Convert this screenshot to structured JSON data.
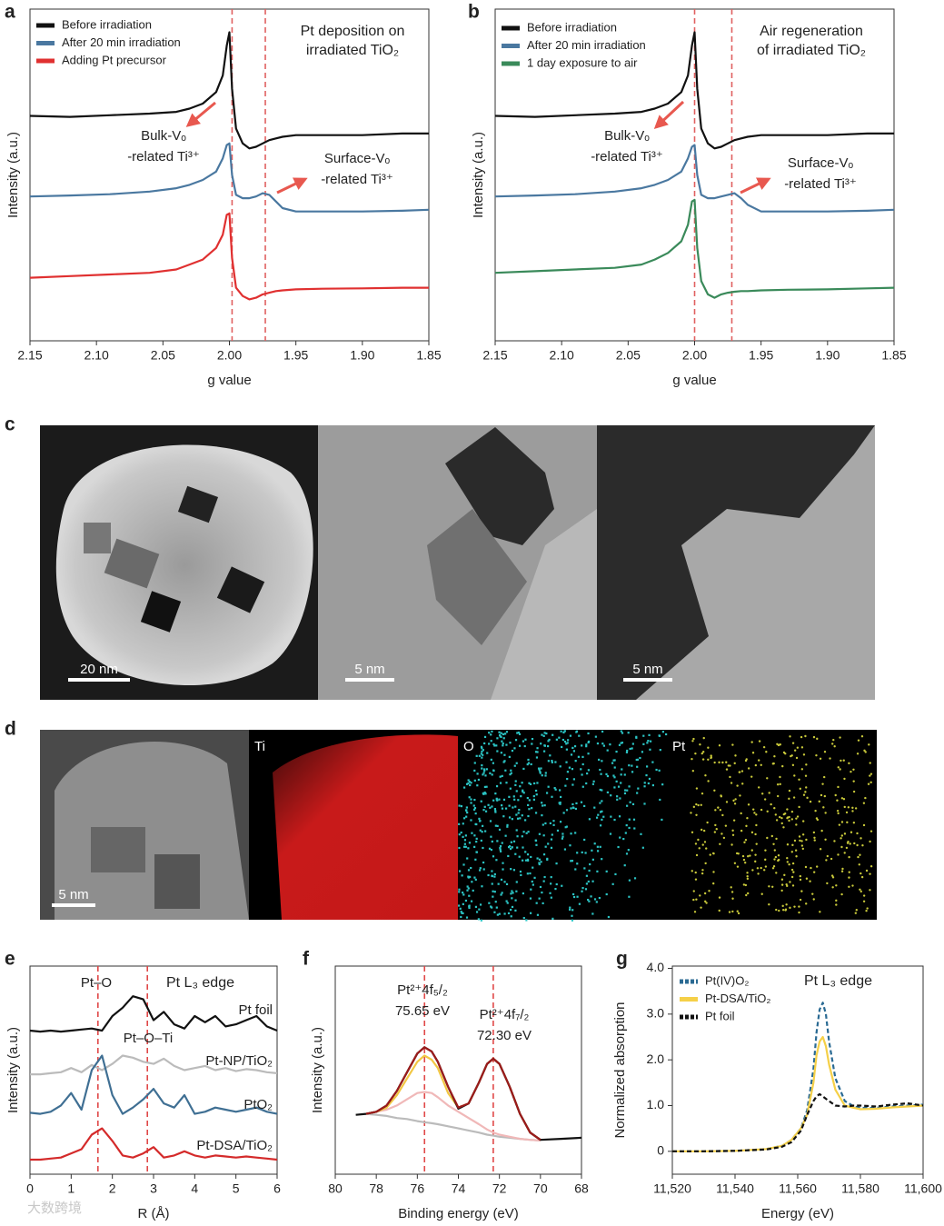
{
  "chart_data": [
    {
      "panel": "a",
      "type": "line",
      "title": [
        "Pt deposition on",
        "irradiated TiO₂"
      ],
      "xlabel": "g value",
      "ylabel": "Intensity (a.u.)",
      "x": [
        2.15,
        2.12,
        2.09,
        2.06,
        2.04,
        2.03,
        2.02,
        2.01,
        2.005,
        2.002,
        2.0,
        1.998,
        1.995,
        1.99,
        1.985,
        1.98,
        1.975,
        1.97,
        1.965,
        1.96,
        1.95,
        1.93,
        1.9,
        1.87,
        1.85
      ],
      "xlim": [
        2.15,
        1.85
      ],
      "xticks": [
        {
          "value": 2.15,
          "label": "2.15"
        },
        {
          "value": 2.1,
          "label": "2.10"
        },
        {
          "value": 2.05,
          "label": "2.05"
        },
        {
          "value": 2.0,
          "label": "2.00"
        },
        {
          "value": 1.95,
          "label": "1.95"
        },
        {
          "value": 1.9,
          "label": "1.90"
        },
        {
          "value": 1.85,
          "label": "1.85"
        }
      ],
      "ylim": [
        0,
        10
      ],
      "legend": true,
      "vlines": [
        1.998,
        1.973
      ],
      "vline_color": "#e06060",
      "series": [
        {
          "name": "Before irradiation",
          "color": "#111111",
          "values": [
            6.78,
            6.75,
            6.8,
            6.85,
            6.9,
            7.0,
            7.15,
            7.5,
            8.0,
            8.9,
            9.3,
            7.6,
            6.4,
            5.95,
            5.8,
            5.85,
            5.95,
            6.05,
            6.1,
            6.15,
            6.2,
            6.2,
            6.2,
            6.25,
            6.25
          ]
        },
        {
          "name": "After 20 min irradiation",
          "color": "#4a78a0",
          "values": [
            4.35,
            4.38,
            4.42,
            4.5,
            4.6,
            4.7,
            4.85,
            5.1,
            5.5,
            5.9,
            5.95,
            5.0,
            4.4,
            4.3,
            4.3,
            4.35,
            4.45,
            4.4,
            4.2,
            4.0,
            3.9,
            3.9,
            3.9,
            3.92,
            3.95
          ]
        },
        {
          "name": "Adding Pt precursor",
          "color": "#e03030",
          "values": [
            1.9,
            1.95,
            2.0,
            2.05,
            2.15,
            2.3,
            2.45,
            2.8,
            3.2,
            3.8,
            3.84,
            2.5,
            1.6,
            1.35,
            1.25,
            1.3,
            1.4,
            1.45,
            1.5,
            1.52,
            1.55,
            1.57,
            1.58,
            1.6,
            1.6
          ]
        }
      ],
      "annotations": [
        {
          "text": [
            "Bulk-Vₒ",
            "-related Ti³⁺"
          ]
        },
        {
          "text": [
            "Surface-Vₒ",
            "-related Ti³⁺"
          ]
        }
      ]
    },
    {
      "panel": "b",
      "type": "line",
      "title": [
        "Air regeneration",
        "of irradiated TiO₂"
      ],
      "xlabel": "g value",
      "ylabel": "Intensity (a.u.)",
      "x": [
        2.15,
        2.12,
        2.09,
        2.06,
        2.04,
        2.03,
        2.02,
        2.01,
        2.005,
        2.002,
        2.0,
        1.998,
        1.995,
        1.99,
        1.985,
        1.98,
        1.975,
        1.97,
        1.965,
        1.96,
        1.95,
        1.93,
        1.9,
        1.87,
        1.85
      ],
      "xlim": [
        2.15,
        1.85
      ],
      "xticks": [
        {
          "value": 2.15,
          "label": "2.15"
        },
        {
          "value": 2.1,
          "label": "2.10"
        },
        {
          "value": 2.05,
          "label": "2.05"
        },
        {
          "value": 2.0,
          "label": "2.00"
        },
        {
          "value": 1.95,
          "label": "1.95"
        },
        {
          "value": 1.9,
          "label": "1.90"
        },
        {
          "value": 1.85,
          "label": "1.85"
        }
      ],
      "ylim": [
        0,
        10
      ],
      "legend": true,
      "vlines": [
        2.0,
        1.972
      ],
      "vline_color": "#e06060",
      "series": [
        {
          "name": "Before irradiation",
          "color": "#111111",
          "values": [
            6.78,
            6.75,
            6.8,
            6.85,
            6.9,
            7.0,
            7.15,
            7.5,
            8.0,
            8.9,
            9.3,
            7.6,
            6.4,
            5.95,
            5.8,
            5.85,
            5.95,
            6.05,
            6.1,
            6.15,
            6.2,
            6.2,
            6.2,
            6.25,
            6.25
          ]
        },
        {
          "name": "After 20 min irradiation",
          "color": "#4a78a0",
          "values": [
            4.35,
            4.38,
            4.42,
            4.5,
            4.6,
            4.7,
            4.85,
            5.1,
            5.5,
            5.85,
            5.9,
            5.0,
            4.4,
            4.3,
            4.3,
            4.35,
            4.4,
            4.45,
            4.3,
            4.1,
            3.9,
            3.9,
            3.9,
            3.92,
            3.95
          ]
        },
        {
          "name": "1 day exposure to air",
          "color": "#3a8a5a",
          "values": [
            2.05,
            2.1,
            2.15,
            2.2,
            2.3,
            2.45,
            2.65,
            3.0,
            3.5,
            4.2,
            4.25,
            2.8,
            1.8,
            1.4,
            1.3,
            1.4,
            1.45,
            1.48,
            1.5,
            1.5,
            1.52,
            1.54,
            1.55,
            1.58,
            1.6
          ]
        }
      ],
      "annotations": [
        {
          "text": [
            "Bulk-Vₒ",
            "-related Ti³⁺"
          ]
        },
        {
          "text": [
            "Surface-Vₒ",
            "-related Ti³⁺"
          ]
        }
      ]
    },
    {
      "panel": "e",
      "type": "line",
      "title": [
        "Pt L₃ edge"
      ],
      "xlabel": "R (Å)",
      "ylabel": "Intensity (a.u.)",
      "x": [
        0,
        0.25,
        0.5,
        0.75,
        1,
        1.25,
        1.5,
        1.75,
        2,
        2.25,
        2.5,
        2.75,
        3,
        3.25,
        3.5,
        3.75,
        4,
        4.25,
        4.5,
        4.75,
        5,
        5.25,
        5.5,
        5.75,
        6
      ],
      "xlim": [
        0,
        6
      ],
      "xticks": [
        0,
        1,
        2,
        3,
        4,
        5,
        6
      ],
      "ylim": [
        0,
        10
      ],
      "legend": "direct",
      "vlines": [
        1.65,
        2.85
      ],
      "vline_color": "#e04848",
      "series": [
        {
          "name": "Pt foil",
          "color": "#111111",
          "values": [
            6.9,
            6.85,
            6.9,
            6.85,
            6.9,
            6.95,
            7.0,
            6.9,
            7.6,
            8.0,
            8.55,
            8.4,
            7.4,
            7.8,
            7.2,
            7.0,
            7.6,
            7.3,
            7.6,
            7.1,
            7.2,
            7.4,
            7.6,
            7.1,
            6.9
          ]
        },
        {
          "name": "Pt-NP/TiO₂",
          "color": "#bbbbbb",
          "values": [
            4.8,
            4.8,
            4.85,
            4.9,
            5.1,
            4.9,
            5.25,
            5.0,
            5.3,
            5.7,
            5.6,
            5.4,
            5.3,
            5.55,
            5.2,
            5.0,
            5.1,
            5.2,
            5.0,
            5.1,
            4.95,
            5.05,
            5.0,
            4.9,
            4.85
          ]
        },
        {
          "name": "PtO₂",
          "color": "#3f6f93",
          "values": [
            2.95,
            2.9,
            3.0,
            3.3,
            3.9,
            3.1,
            5.0,
            5.7,
            3.8,
            2.9,
            3.2,
            3.6,
            4.1,
            3.4,
            3.2,
            3.8,
            2.9,
            3.0,
            3.2,
            3.1,
            3.0,
            3.1,
            3.2,
            3.0,
            2.9
          ]
        },
        {
          "name": "Pt-DSA/TiO₂",
          "color": "#d42a2a",
          "values": [
            0.7,
            0.7,
            0.75,
            0.8,
            1.0,
            1.2,
            1.9,
            2.2,
            1.6,
            0.9,
            0.8,
            1.0,
            1.3,
            0.8,
            0.9,
            1.1,
            0.9,
            0.8,
            0.9,
            0.85,
            0.8,
            0.85,
            0.8,
            0.75,
            0.7
          ]
        }
      ],
      "annotations": [
        {
          "text": [
            "Pt–O"
          ]
        },
        {
          "text": [
            "Pt–O–Ti"
          ]
        }
      ]
    },
    {
      "panel": "f",
      "type": "line",
      "xlabel": "Binding energy (eV)",
      "ylabel": "Intensity (a.u.)",
      "x": [
        80,
        79,
        78.5,
        78,
        77.5,
        77,
        76.5,
        76,
        75.65,
        75.3,
        75,
        74.5,
        74,
        73.5,
        73,
        72.6,
        72.3,
        72,
        71.5,
        71,
        70.5,
        70,
        69,
        68
      ],
      "xlim": [
        80,
        68
      ],
      "xticks": [
        80,
        78,
        76,
        74,
        72,
        70,
        68
      ],
      "ylim": [
        0,
        10
      ],
      "vlines": [
        75.65,
        72.3
      ],
      "vline_color": "#e04848",
      "series": [
        {
          "color": "#bbbbbb",
          "values": [
            null,
            null,
            2.9,
            2.85,
            2.8,
            2.7,
            2.65,
            2.55,
            2.5,
            2.45,
            2.4,
            2.3,
            2.2,
            2.1,
            2.0,
            1.9,
            1.85,
            1.8,
            1.75,
            1.7,
            1.65,
            1.62,
            null,
            null
          ]
        },
        {
          "color": "#f0b8b8",
          "values": [
            null,
            null,
            2.9,
            3.0,
            3.1,
            3.3,
            3.6,
            3.9,
            3.95,
            3.9,
            3.7,
            3.3,
            3.0,
            2.7,
            2.4,
            2.15,
            2.0,
            1.9,
            1.8,
            1.7,
            1.65,
            1.62,
            null,
            null
          ]
        },
        {
          "color": "#f2c744",
          "values": [
            null,
            null,
            2.9,
            3.0,
            3.2,
            3.8,
            4.6,
            5.4,
            5.7,
            5.5,
            5.1,
            3.9,
            3.2,
            3.4,
            4.4,
            5.3,
            5.55,
            5.3,
            4.2,
            2.9,
            2.0,
            1.65,
            null,
            null
          ]
        },
        {
          "color": "#111111",
          "values": [
            null,
            2.85,
            2.9,
            3.0,
            3.3,
            4.0,
            4.9,
            5.8,
            6.1,
            5.9,
            5.4,
            4.2,
            3.15,
            3.4,
            4.4,
            5.3,
            5.55,
            5.3,
            4.2,
            2.9,
            2.0,
            1.65,
            1.7,
            1.75
          ]
        },
        {
          "color": "#9b1b1b",
          "values": [
            null,
            null,
            2.9,
            3.0,
            3.3,
            4.0,
            4.9,
            5.8,
            6.1,
            5.9,
            5.4,
            4.2,
            3.2,
            3.4,
            4.4,
            5.3,
            5.55,
            5.3,
            4.2,
            2.9,
            2.0,
            1.65,
            null,
            null
          ]
        }
      ],
      "annotations": [
        {
          "text": [
            "Pt²⁺4f₅/₂",
            "75.65 eV"
          ]
        },
        {
          "text": [
            "Pt²⁺4f₇/₂",
            "72.30 eV"
          ]
        }
      ]
    },
    {
      "panel": "g",
      "type": "line",
      "title": [
        "Pt L₃ edge"
      ],
      "xlabel": "Energy (eV)",
      "ylabel": "Normalized absorption",
      "x": [
        11520,
        11530,
        11540,
        11550,
        11555,
        11558,
        11561,
        11563,
        11565,
        11566,
        11567,
        11568,
        11569,
        11570,
        11572,
        11575,
        11578,
        11580,
        11585,
        11590,
        11595,
        11600
      ],
      "xlim": [
        11520,
        11600
      ],
      "xticks": [
        {
          "value": 11520,
          "label": "11,520"
        },
        {
          "value": 11540,
          "label": "11,540"
        },
        {
          "value": 11560,
          "label": "11,560"
        },
        {
          "value": 11580,
          "label": "11,580"
        },
        {
          "value": 11600,
          "label": "11,600"
        }
      ],
      "ylim": [
        -0.5,
        4.05
      ],
      "yticks": [
        0,
        {
          "value": 1,
          "label": "1.0"
        },
        {
          "value": 2,
          "label": "2.0"
        },
        {
          "value": 3,
          "label": "3.0"
        },
        {
          "value": 4,
          "label": "4.0"
        }
      ],
      "legend": true,
      "series": [
        {
          "name": "Pt(IV)O₂",
          "color": "#2a6a93",
          "dash": true,
          "values": [
            0,
            0,
            0.01,
            0.05,
            0.12,
            0.25,
            0.5,
            0.9,
            1.8,
            2.6,
            3.1,
            3.25,
            3.0,
            2.4,
            1.6,
            1.1,
            0.98,
            0.95,
            0.95,
            0.98,
            1.0,
            1.02
          ]
        },
        {
          "name": "Pt-DSA/TiO₂",
          "color": "#f5d048",
          "dash": false,
          "values": [
            0,
            0,
            0.01,
            0.05,
            0.12,
            0.25,
            0.5,
            0.8,
            1.5,
            2.1,
            2.4,
            2.5,
            2.3,
            1.9,
            1.35,
            1.0,
            0.95,
            0.92,
            0.93,
            0.96,
            0.98,
            1.0
          ]
        },
        {
          "name": "Pt foil",
          "color": "#111111",
          "dash": true,
          "values": [
            0,
            0,
            0.01,
            0.04,
            0.1,
            0.2,
            0.45,
            0.8,
            1.1,
            1.2,
            1.25,
            1.2,
            1.15,
            1.1,
            1.0,
            0.98,
            1.0,
            1.0,
            0.98,
            1.02,
            1.05,
            1.0
          ]
        }
      ]
    }
  ],
  "images": {
    "panel": "c",
    "scale_bars": [
      "20 nm",
      "5 nm",
      "5 nm"
    ]
  },
  "maps": {
    "panel": "d",
    "scale_bar": "5 nm",
    "labels": [
      "Ti",
      "O",
      "Pt"
    ]
  },
  "watermark": "大数跨境"
}
